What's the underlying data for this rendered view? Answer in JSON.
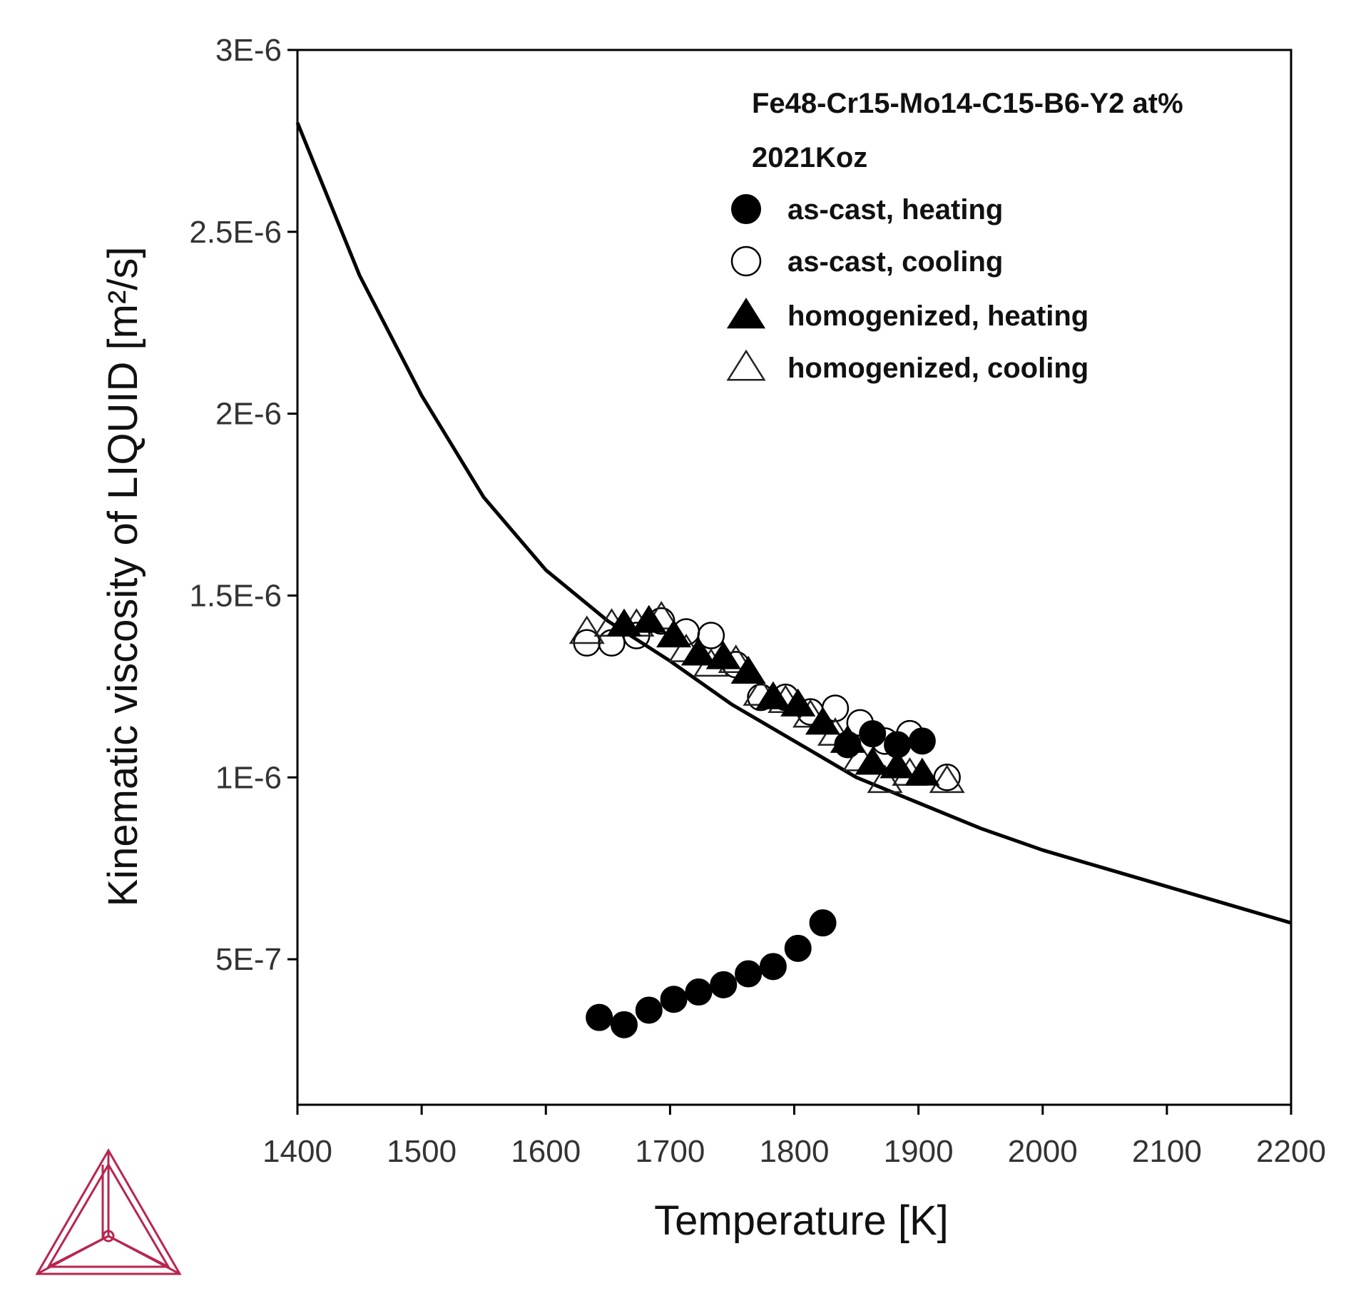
{
  "chart_data": {
    "type": "scatter",
    "xlabel": "Temperature [K]",
    "ylabel": "Kinematic viscosity of LIQUID [m²/s]",
    "xlim": [
      1400,
      2200
    ],
    "ylim": [
      1e-07,
      3e-06
    ],
    "x_ticks": [
      1400,
      1500,
      1600,
      1700,
      1800,
      1900,
      2000,
      2100,
      2200
    ],
    "x_tick_labels": [
      "1400",
      "1500",
      "1600",
      "1700",
      "1800",
      "1900",
      "2000",
      "2100",
      "2200"
    ],
    "y_ticks": [
      5e-07,
      1e-06,
      1.5e-06,
      2e-06,
      2.5e-06,
      3e-06
    ],
    "y_tick_labels": [
      "5E-7",
      "1E-6",
      "1.5E-6",
      "2E-6",
      "2.5E-6",
      "3E-6"
    ],
    "legend_position": "top-right",
    "legend_title_lines": [
      "Fe48-Cr15-Mo14-C15-B6-Y2 at%",
      "2021Koz"
    ],
    "calculated_curve": {
      "x": [
        1400,
        1450,
        1500,
        1550,
        1600,
        1650,
        1700,
        1750,
        1800,
        1850,
        1900,
        1950,
        2000,
        2050,
        2100,
        2150,
        2200
      ],
      "y": [
        2.8e-06,
        2.38e-06,
        2.05e-06,
        1.77e-06,
        1.57e-06,
        1.43e-06,
        1.32e-06,
        1.2e-06,
        1.1e-06,
        1e-06,
        9.3e-07,
        8.6e-07,
        8e-07,
        7.5e-07,
        7e-07,
        6.5e-07,
        6e-07
      ]
    },
    "series": [
      {
        "name": "as-cast, heating",
        "marker": "filled-circle",
        "x": [
          1643,
          1663,
          1683,
          1703,
          1723,
          1743,
          1763,
          1783,
          1803,
          1823,
          1843,
          1863,
          1883,
          1903
        ],
        "y": [
          3.4e-07,
          3.2e-07,
          3.6e-07,
          3.9e-07,
          4.1e-07,
          4.3e-07,
          4.6e-07,
          4.8e-07,
          5.3e-07,
          6e-07,
          1.09e-06,
          1.12e-06,
          1.09e-06,
          1.1e-06
        ]
      },
      {
        "name": "as-cast, cooling",
        "marker": "open-circle",
        "x": [
          1633,
          1653,
          1673,
          1693,
          1713,
          1733,
          1753,
          1773,
          1793,
          1813,
          1833,
          1853,
          1873,
          1893,
          1923
        ],
        "y": [
          1.37e-06,
          1.37e-06,
          1.39e-06,
          1.43e-06,
          1.4e-06,
          1.39e-06,
          1.31e-06,
          1.22e-06,
          1.22e-06,
          1.18e-06,
          1.19e-06,
          1.15e-06,
          1.1e-06,
          1.12e-06,
          1e-06
        ]
      },
      {
        "name": "homogenized, heating",
        "marker": "filled-triangle",
        "x": [
          1663,
          1683,
          1703,
          1723,
          1743,
          1763,
          1783,
          1803,
          1823,
          1843,
          1863,
          1883,
          1903
        ],
        "y": [
          1.42e-06,
          1.43e-06,
          1.39e-06,
          1.34e-06,
          1.33e-06,
          1.29e-06,
          1.22e-06,
          1.2e-06,
          1.15e-06,
          1.1e-06,
          1.04e-06,
          1.03e-06,
          1.01e-06
        ]
      },
      {
        "name": "homogenized, cooling",
        "marker": "open-triangle",
        "x": [
          1633,
          1653,
          1673,
          1693,
          1713,
          1733,
          1753,
          1773,
          1793,
          1813,
          1833,
          1853,
          1873,
          1893,
          1923
        ],
        "y": [
          1.4e-06,
          1.42e-06,
          1.42e-06,
          1.44e-06,
          1.35e-06,
          1.31e-06,
          1.32e-06,
          1.23e-06,
          1.21e-06,
          1.17e-06,
          1.12e-06,
          1.05e-06,
          9.9e-07,
          1.01e-06,
          9.9e-07
        ]
      }
    ]
  },
  "colors": {
    "axis": "#000000",
    "curve": "#000000",
    "logo": "#b8254f"
  },
  "logo": {
    "icon": "thermo-calc-triangle-logo-icon"
  }
}
